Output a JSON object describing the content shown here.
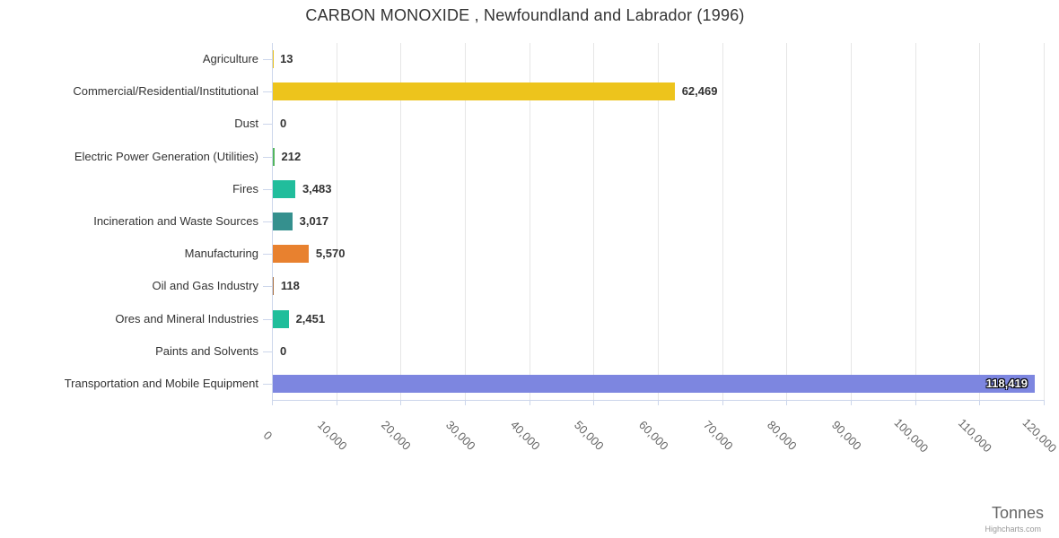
{
  "credits_label": "Highcharts.com",
  "chart_data": {
    "type": "bar",
    "orientation": "horizontal",
    "title": "CARBON MONOXIDE , Newfoundland and Labrador (1996)",
    "xlabel": "Tonnes",
    "ylabel": "",
    "categories": [
      "Agriculture",
      "Commercial/Residential/Institutional",
      "Dust",
      "Electric Power Generation (Utilities)",
      "Fires",
      "Incineration and Waste Sources",
      "Manufacturing",
      "Oil and Gas Industry",
      "Ores and Mineral Industries",
      "Paints and Solvents",
      "Transportation and Mobile Equipment"
    ],
    "values": [
      13,
      62469,
      0,
      212,
      3483,
      3017,
      5570,
      118,
      2451,
      0,
      118419
    ],
    "value_labels": [
      "13",
      "62,469",
      "0",
      "212",
      "3,483",
      "3,017",
      "5,570",
      "118",
      "2,451",
      "0",
      "118,419"
    ],
    "bar_colors": [
      "#e8c21d",
      "#edc41c",
      "#cccccc",
      "#54b55e",
      "#21bd9c",
      "#35908e",
      "#e8812f",
      "#a97142",
      "#1fbe9b",
      "#cccccc",
      "#7d86e0"
    ],
    "inside_label_indices": [
      10
    ],
    "xlim": [
      0,
      120000
    ],
    "tick_interval": 10000,
    "x_tick_labels": [
      "0",
      "10,000",
      "20,000",
      "30,000",
      "40,000",
      "50,000",
      "60,000",
      "70,000",
      "80,000",
      "90,000",
      "100,000",
      "110,000",
      "120,000"
    ],
    "grid": true,
    "legend": false,
    "colors": {
      "grid": "#e6e6e6",
      "axis": "#ccd6eb",
      "title_text": "#333333",
      "category_text": "#333333",
      "value_text": "#333333",
      "x_tick_text": "#666666",
      "axis_title_text": "#666666",
      "credits_text": "#999999"
    }
  }
}
